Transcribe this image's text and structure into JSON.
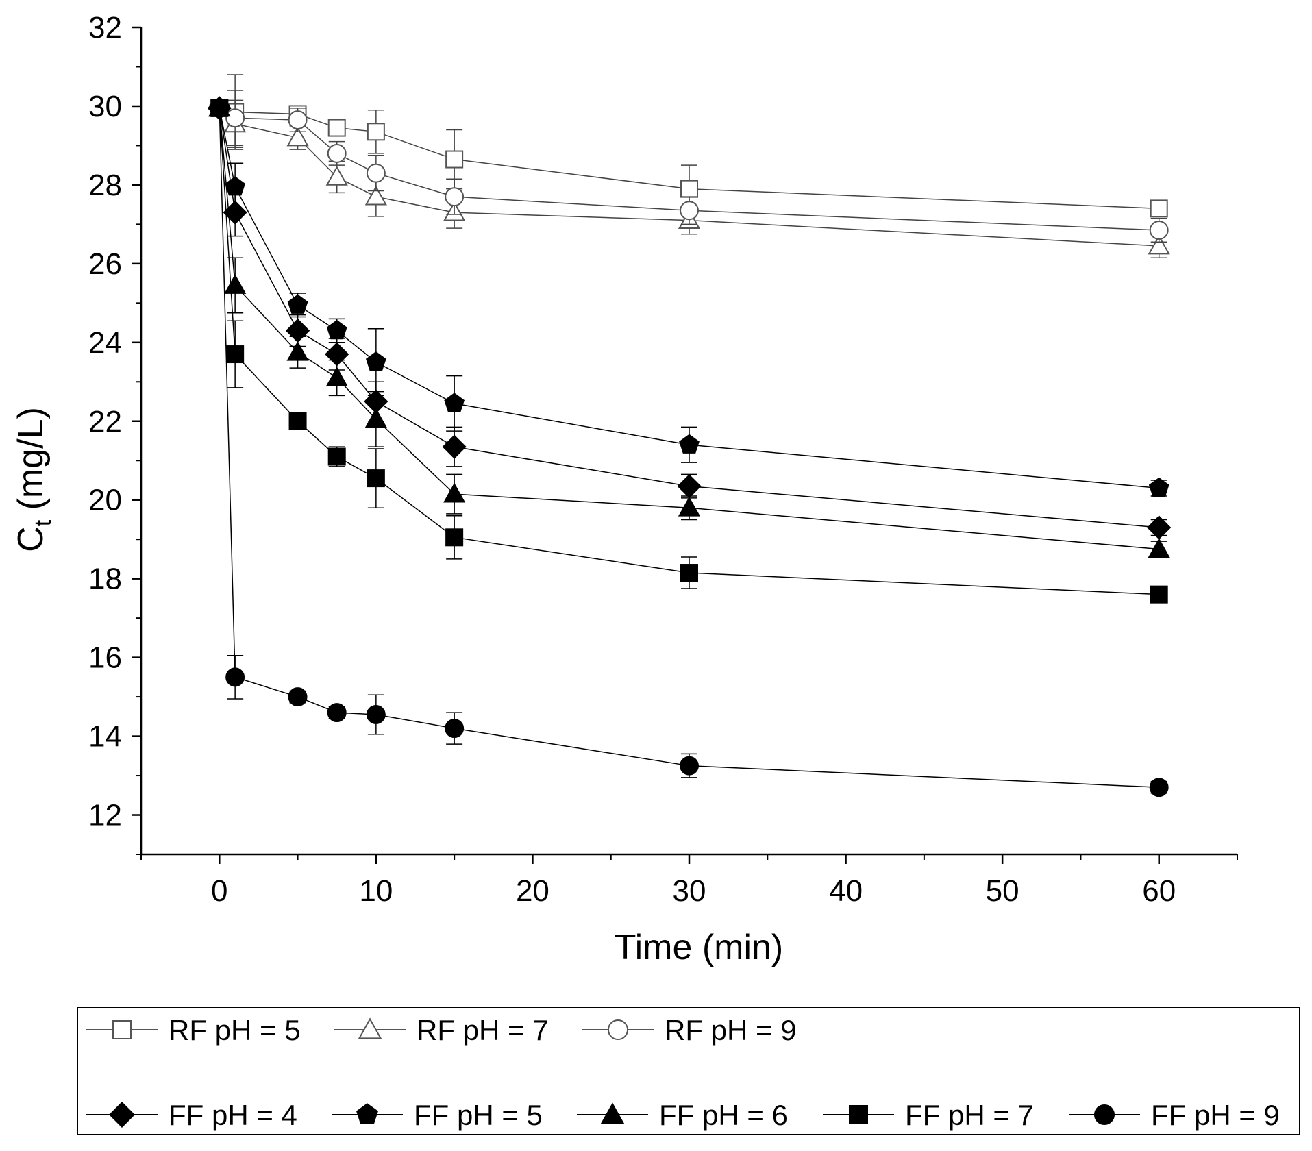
{
  "chart_data": {
    "type": "line",
    "title": "",
    "xlabel": "Time (min)",
    "ylabel_main": "C",
    "ylabel_sub": "t",
    "ylabel_unit": " (mg/L)",
    "xlim": [
      -5,
      65
    ],
    "ylim": [
      11,
      32
    ],
    "x_ticks_major": [
      0,
      10,
      20,
      30,
      40,
      50,
      60
    ],
    "x_tick_labels": [
      "0",
      "10",
      "20",
      "30",
      "40",
      "50",
      "60"
    ],
    "y_ticks_major": [
      12,
      14,
      16,
      18,
      20,
      22,
      24,
      26,
      28,
      30,
      32
    ],
    "y_tick_labels": [
      "12",
      "14",
      "16",
      "18",
      "20",
      "22",
      "24",
      "26",
      "28",
      "30",
      "32"
    ],
    "grid": false,
    "legend_position": "bottom",
    "series": [
      {
        "name": "RF pH = 5",
        "marker": "square",
        "filled": false,
        "x": [
          0,
          1,
          5,
          7.5,
          10,
          15,
          30,
          60
        ],
        "y": [
          29.95,
          29.85,
          29.8,
          29.45,
          29.35,
          28.65,
          27.9,
          27.4
        ],
        "err": [
          0.1,
          0.95,
          0.2,
          0.2,
          0.55,
          0.75,
          0.6,
          0.1
        ]
      },
      {
        "name": "RF pH = 7",
        "marker": "triangle",
        "filled": false,
        "x": [
          0,
          1,
          5,
          7.5,
          10,
          15,
          30,
          60
        ],
        "y": [
          29.95,
          29.55,
          29.2,
          28.2,
          27.7,
          27.3,
          27.1,
          26.45
        ],
        "err": [
          0.1,
          0.6,
          0.3,
          0.4,
          0.5,
          0.4,
          0.35,
          0.3
        ]
      },
      {
        "name": "RF pH = 9",
        "marker": "circle",
        "filled": false,
        "x": [
          0,
          1,
          5,
          7.5,
          10,
          15,
          30,
          60
        ],
        "y": [
          29.95,
          29.7,
          29.65,
          28.8,
          28.3,
          27.7,
          27.35,
          26.85
        ],
        "err": [
          0.1,
          0.7,
          0.3,
          0.3,
          0.45,
          0.45,
          0.35,
          0.3
        ]
      },
      {
        "name": "FF pH = 4",
        "marker": "diamond",
        "filled": true,
        "x": [
          0,
          1,
          5,
          7.5,
          10,
          15,
          30,
          60
        ],
        "y": [
          29.95,
          27.3,
          24.3,
          23.7,
          22.5,
          21.35,
          20.35,
          19.3
        ],
        "err": [
          0.1,
          0.6,
          0.4,
          0.4,
          0.5,
          0.5,
          0.3,
          0.2
        ]
      },
      {
        "name": "FF pH = 5",
        "marker": "pentagon",
        "filled": true,
        "x": [
          0,
          1,
          5,
          7.5,
          10,
          15,
          30,
          60
        ],
        "y": [
          29.95,
          27.95,
          24.95,
          24.3,
          23.5,
          22.45,
          21.4,
          20.3
        ],
        "err": [
          0.1,
          0.6,
          0.3,
          0.3,
          0.85,
          0.7,
          0.45,
          0.2
        ]
      },
      {
        "name": "FF pH = 6",
        "marker": "triangle",
        "filled": true,
        "x": [
          0,
          1,
          5,
          7.5,
          10,
          15,
          30,
          60
        ],
        "y": [
          29.95,
          25.45,
          23.75,
          23.1,
          22.05,
          20.15,
          19.8,
          18.75
        ],
        "err": [
          0.1,
          0.7,
          0.4,
          0.45,
          0.7,
          0.5,
          0.3,
          0.2
        ]
      },
      {
        "name": "FF pH = 7",
        "marker": "square",
        "filled": true,
        "x": [
          0,
          1,
          5,
          7.5,
          10,
          15,
          30,
          60
        ],
        "y": [
          29.95,
          23.7,
          22.0,
          21.1,
          20.55,
          19.05,
          18.15,
          17.6
        ],
        "err": [
          0.1,
          0.85,
          0.2,
          0.25,
          0.75,
          0.55,
          0.4,
          0.15
        ]
      },
      {
        "name": "FF pH = 9",
        "marker": "circle",
        "filled": true,
        "x": [
          0,
          1,
          5,
          7.5,
          10,
          15,
          30,
          60
        ],
        "y": [
          29.95,
          15.5,
          15.0,
          14.6,
          14.55,
          14.2,
          13.25,
          12.7
        ],
        "err": [
          0.1,
          0.55,
          0.15,
          0.15,
          0.5,
          0.4,
          0.3,
          0.15
        ]
      }
    ]
  }
}
